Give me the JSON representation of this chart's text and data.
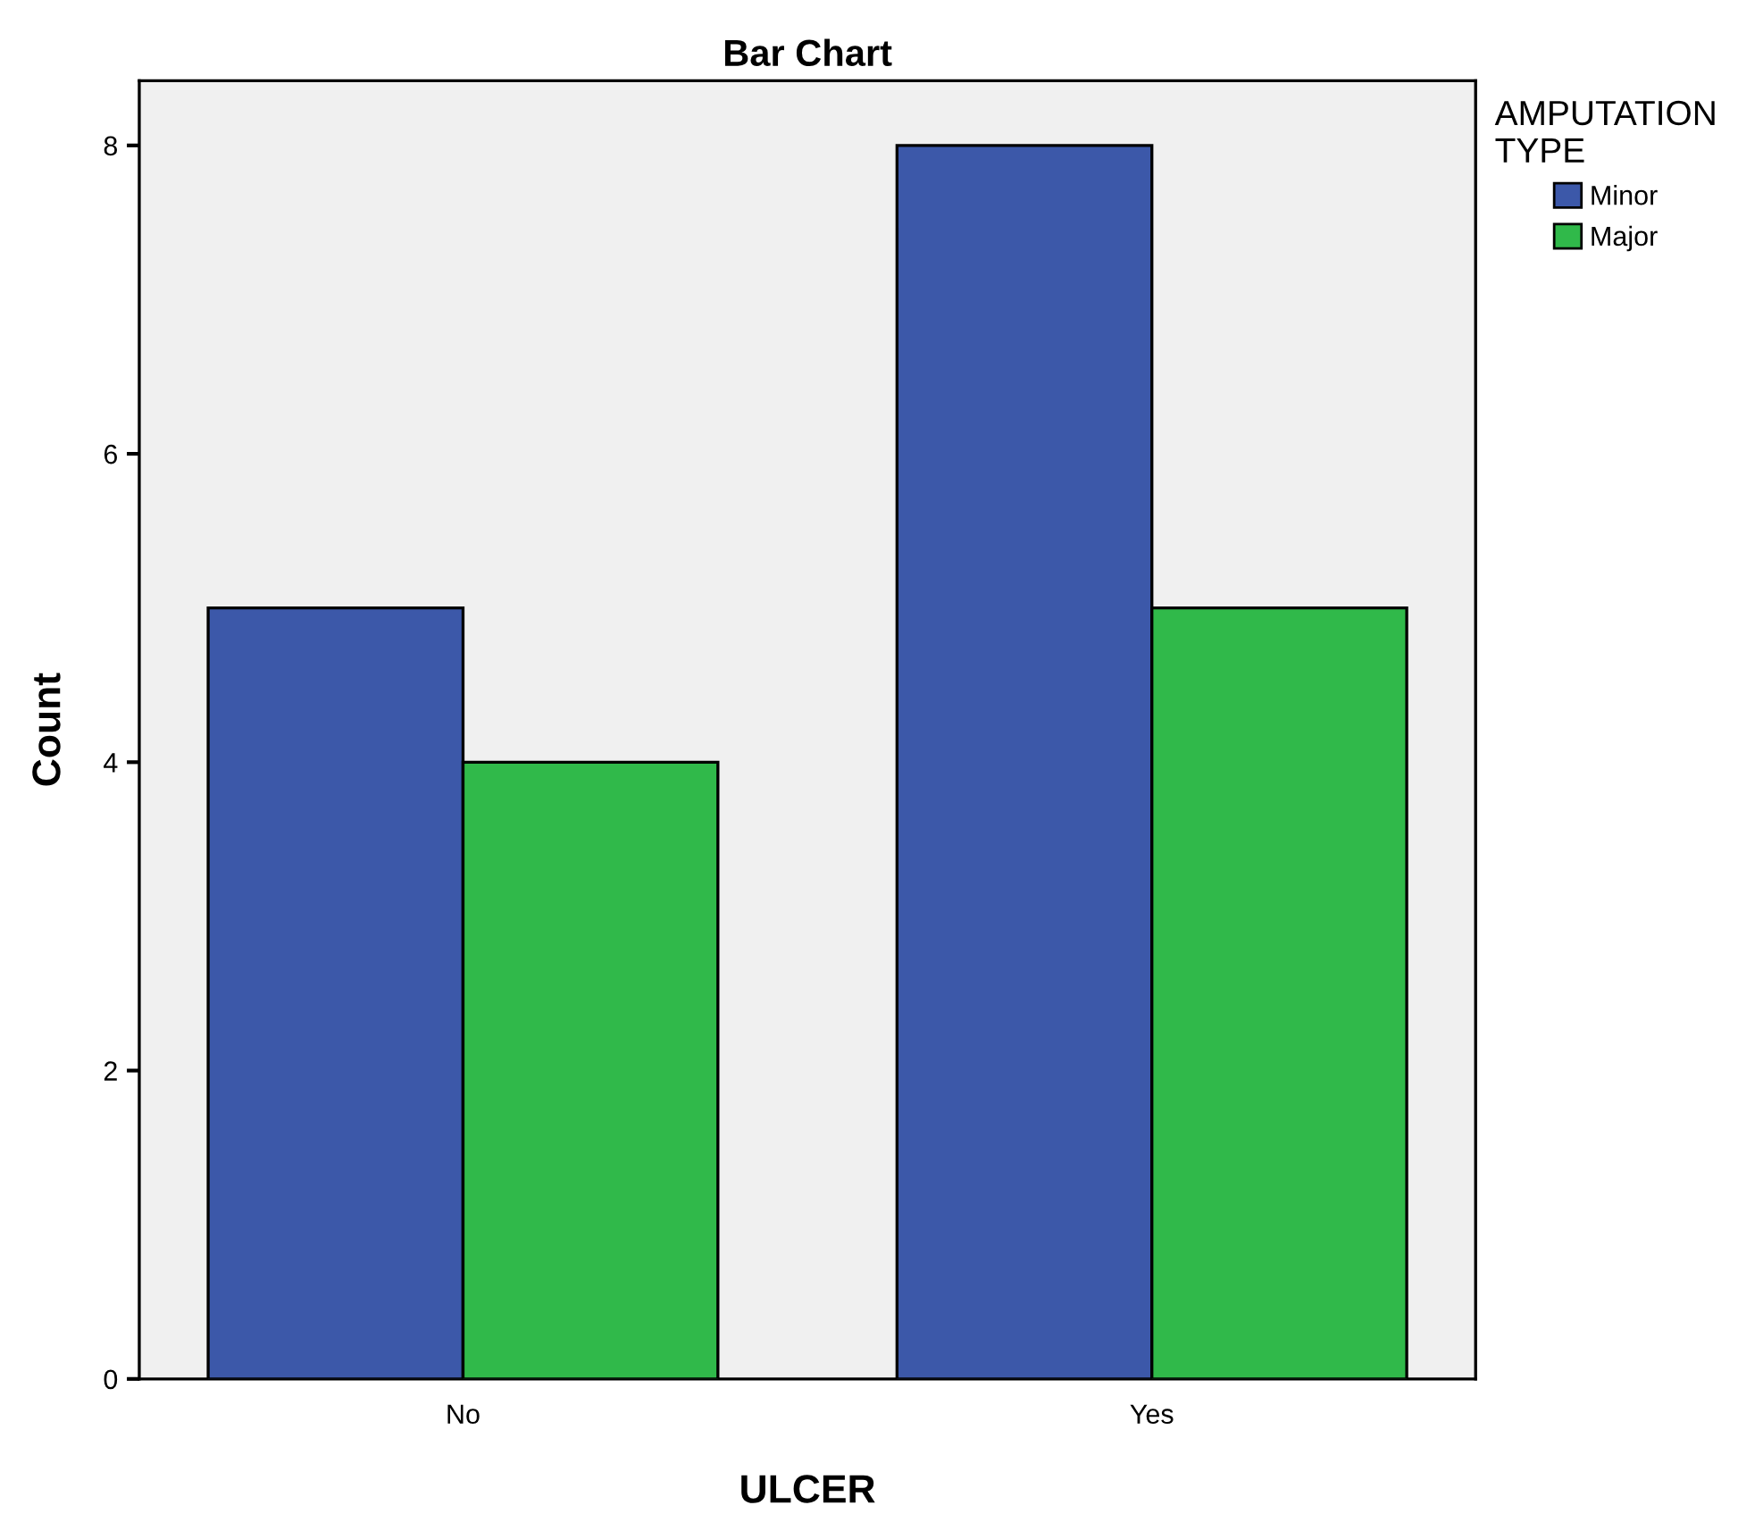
{
  "chart_data": {
    "type": "bar",
    "title": "Bar Chart",
    "xlabel": "ULCER",
    "ylabel": "Count",
    "legend_title": "AMPUTATION\nTYPE",
    "categories": [
      "No",
      "Yes"
    ],
    "series": [
      {
        "name": "Minor",
        "color": "#3c58a9",
        "values": [
          5,
          8
        ]
      },
      {
        "name": "Major",
        "color": "#30b94a",
        "values": [
          4,
          5
        ]
      }
    ],
    "ylim": [
      0,
      8.42
    ],
    "yticks": [
      0,
      2,
      4,
      6,
      8
    ],
    "grid": false,
    "legend": "top right"
  }
}
